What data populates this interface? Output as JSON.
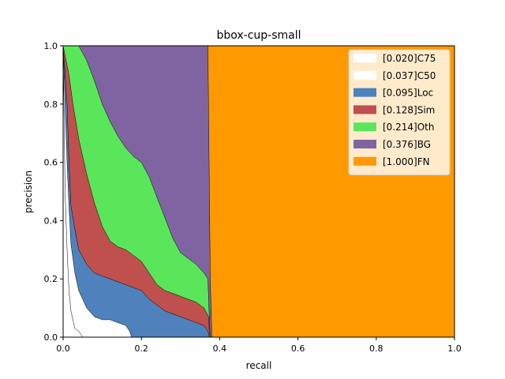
{
  "chart_data": {
    "type": "area",
    "title": "bbox-cup-small",
    "xlabel": "recall",
    "ylabel": "precision",
    "xlim": [
      0.0,
      1.0
    ],
    "ylim": [
      0.0,
      1.0
    ],
    "x_ticks": [
      "0.0",
      "0.2",
      "0.4",
      "0.6",
      "0.8",
      "1.0"
    ],
    "y_ticks": [
      "0.0",
      "0.2",
      "0.4",
      "0.6",
      "0.8",
      "1.0"
    ],
    "grid": false,
    "legend_position": "top-right",
    "series": [
      {
        "name": "[1.000]FN",
        "color": "#ff9900",
        "points": [
          [
            0.0,
            1.0
          ],
          [
            1.0,
            1.0
          ],
          [
            1.0,
            0.0
          ],
          [
            0.0,
            0.0
          ]
        ]
      },
      {
        "name": "[0.376]BG",
        "color": "#8064a2",
        "points": [
          [
            0.0,
            1.0
          ],
          [
            0.37,
            1.0
          ],
          [
            0.376,
            0.2
          ],
          [
            0.38,
            0.0
          ],
          [
            0.0,
            0.0
          ]
        ]
      },
      {
        "name": "[0.214]Oth",
        "color": "#5ae65a",
        "points": [
          [
            0.0,
            1.0
          ],
          [
            0.04,
            1.0
          ],
          [
            0.06,
            0.95
          ],
          [
            0.08,
            0.88
          ],
          [
            0.1,
            0.8
          ],
          [
            0.12,
            0.74
          ],
          [
            0.14,
            0.69
          ],
          [
            0.16,
            0.65
          ],
          [
            0.18,
            0.62
          ],
          [
            0.2,
            0.6
          ],
          [
            0.22,
            0.55
          ],
          [
            0.24,
            0.48
          ],
          [
            0.26,
            0.41
          ],
          [
            0.28,
            0.34
          ],
          [
            0.3,
            0.29
          ],
          [
            0.32,
            0.27
          ],
          [
            0.34,
            0.25
          ],
          [
            0.36,
            0.22
          ],
          [
            0.37,
            0.2
          ],
          [
            0.374,
            0.05
          ],
          [
            0.376,
            0.0
          ],
          [
            0.0,
            0.0
          ]
        ]
      },
      {
        "name": "[0.128]Sim",
        "color": "#c0504d",
        "points": [
          [
            0.0,
            1.0
          ],
          [
            0.015,
            0.9
          ],
          [
            0.025,
            0.8
          ],
          [
            0.04,
            0.68
          ],
          [
            0.06,
            0.56
          ],
          [
            0.08,
            0.46
          ],
          [
            0.1,
            0.38
          ],
          [
            0.12,
            0.33
          ],
          [
            0.14,
            0.31
          ],
          [
            0.16,
            0.3
          ],
          [
            0.18,
            0.28
          ],
          [
            0.2,
            0.26
          ],
          [
            0.22,
            0.22
          ],
          [
            0.24,
            0.18
          ],
          [
            0.26,
            0.16
          ],
          [
            0.28,
            0.15
          ],
          [
            0.3,
            0.14
          ],
          [
            0.32,
            0.13
          ],
          [
            0.34,
            0.12
          ],
          [
            0.36,
            0.1
          ],
          [
            0.372,
            0.07
          ],
          [
            0.374,
            0.0
          ],
          [
            0.0,
            0.0
          ]
        ]
      },
      {
        "name": "[0.095]Loc",
        "color": "#4f81bd",
        "points": [
          [
            0.0,
            1.0
          ],
          [
            0.01,
            0.8
          ],
          [
            0.015,
            0.6
          ],
          [
            0.02,
            0.45
          ],
          [
            0.03,
            0.37
          ],
          [
            0.04,
            0.3
          ],
          [
            0.06,
            0.25
          ],
          [
            0.08,
            0.22
          ],
          [
            0.1,
            0.21
          ],
          [
            0.12,
            0.2
          ],
          [
            0.14,
            0.19
          ],
          [
            0.16,
            0.18
          ],
          [
            0.18,
            0.17
          ],
          [
            0.2,
            0.16
          ],
          [
            0.22,
            0.13
          ],
          [
            0.24,
            0.11
          ],
          [
            0.26,
            0.09
          ],
          [
            0.28,
            0.08
          ],
          [
            0.3,
            0.07
          ],
          [
            0.32,
            0.06
          ],
          [
            0.34,
            0.05
          ],
          [
            0.36,
            0.04
          ],
          [
            0.37,
            0.02
          ],
          [
            0.374,
            0.0
          ],
          [
            0.0,
            0.0
          ]
        ]
      },
      {
        "name": "[0.037]C50",
        "color": "#ffffff",
        "points": [
          [
            0.0,
            1.0
          ],
          [
            0.005,
            0.8
          ],
          [
            0.01,
            0.6
          ],
          [
            0.015,
            0.45
          ],
          [
            0.02,
            0.32
          ],
          [
            0.03,
            0.22
          ],
          [
            0.04,
            0.16
          ],
          [
            0.06,
            0.1
          ],
          [
            0.08,
            0.07
          ],
          [
            0.1,
            0.06
          ],
          [
            0.12,
            0.06
          ],
          [
            0.14,
            0.05
          ],
          [
            0.16,
            0.04
          ],
          [
            0.17,
            0.02
          ],
          [
            0.175,
            0.0
          ],
          [
            0.0,
            0.0
          ]
        ]
      },
      {
        "name": "[0.020]C75",
        "color": "#ffffff",
        "points": [
          [
            0.0,
            1.0
          ],
          [
            0.005,
            0.5
          ],
          [
            0.01,
            0.3
          ],
          [
            0.015,
            0.16
          ],
          [
            0.02,
            0.09
          ],
          [
            0.03,
            0.03
          ],
          [
            0.04,
            0.02
          ],
          [
            0.05,
            0.0
          ],
          [
            0.0,
            0.0
          ]
        ]
      }
    ]
  }
}
